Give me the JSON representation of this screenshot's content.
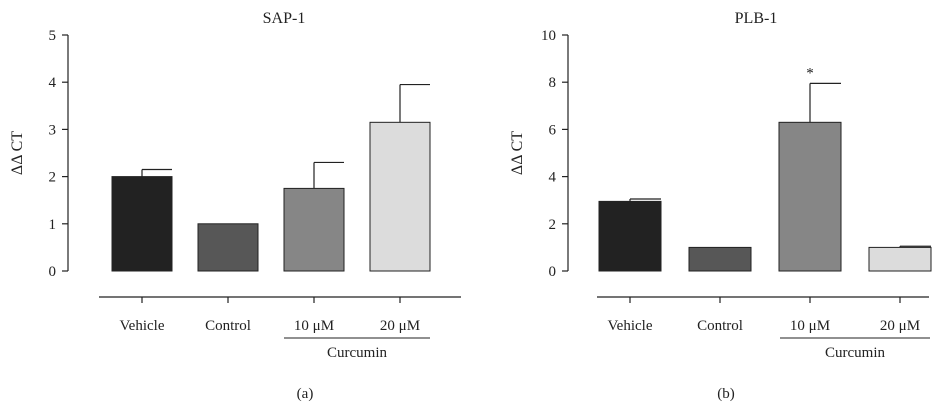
{
  "chart_data": [
    {
      "type": "bar",
      "panel_label": "(a)",
      "title": "SAP-1",
      "ylabel": "ΔΔ CT",
      "xlabel": "",
      "ylim": [
        0,
        5
      ],
      "yticks": [
        0,
        1,
        2,
        3,
        4,
        5
      ],
      "categories": [
        "Vehicle",
        "Control",
        "10 μM",
        "20 μM"
      ],
      "group_label": "Curcumin",
      "grouped_categories": [
        "10 μM",
        "20 μM"
      ],
      "values": [
        2.0,
        1.0,
        1.75,
        3.15
      ],
      "errors": [
        0.15,
        0.0,
        0.55,
        0.8
      ],
      "bar_colors": [
        "#222222",
        "#575757",
        "#868686",
        "#dcdcdc"
      ],
      "significance": [
        "",
        "",
        "",
        ""
      ],
      "grid": false
    },
    {
      "type": "bar",
      "panel_label": "(b)",
      "title": "PLB-1",
      "ylabel": "ΔΔ CT",
      "xlabel": "",
      "ylim": [
        0,
        10
      ],
      "yticks": [
        0,
        2,
        4,
        6,
        8,
        10
      ],
      "categories": [
        "Vehicle",
        "Control",
        "10 μM",
        "20 μM"
      ],
      "group_label": "Curcumin",
      "grouped_categories": [
        "10 μM",
        "20 μM"
      ],
      "values": [
        2.95,
        1.0,
        6.3,
        1.0
      ],
      "errors": [
        0.1,
        0.0,
        1.65,
        0.05
      ],
      "bar_colors": [
        "#222222",
        "#575757",
        "#868686",
        "#dcdcdc"
      ],
      "significance": [
        "",
        "",
        "*",
        ""
      ],
      "grid": false
    }
  ]
}
